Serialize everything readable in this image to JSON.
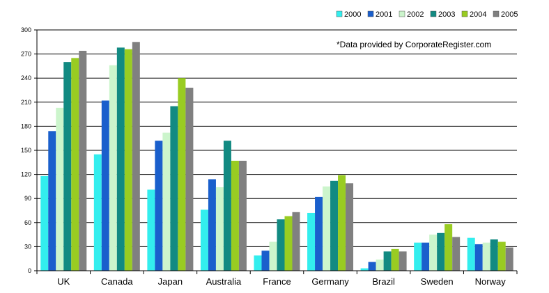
{
  "chart_data": {
    "type": "bar",
    "title": "",
    "xlabel": "",
    "ylabel": "",
    "annotation": "*Data provided by CorporateRegister.com",
    "categories": [
      "UK",
      "Canada",
      "Japan",
      "Australia",
      "France",
      "Germany",
      "Brazil",
      "Sweden",
      "Norway"
    ],
    "series": [
      {
        "name": "2000",
        "color": "#33eeee",
        "values": [
          118,
          145,
          101,
          76,
          19,
          72,
          3,
          35,
          41
        ]
      },
      {
        "name": "2001",
        "color": "#1a5fcc",
        "values": [
          174,
          212,
          162,
          114,
          25,
          92,
          11,
          35,
          33
        ]
      },
      {
        "name": "2002",
        "color": "#ccf5cc",
        "values": [
          203,
          256,
          172,
          104,
          36,
          105,
          14,
          45,
          35
        ]
      },
      {
        "name": "2003",
        "color": "#128a82",
        "values": [
          260,
          278,
          205,
          162,
          64,
          112,
          24,
          47,
          39
        ]
      },
      {
        "name": "2004",
        "color": "#99cc22",
        "values": [
          265,
          276,
          240,
          137,
          68,
          119,
          27,
          58,
          36
        ]
      },
      {
        "name": "2005",
        "color": "#808080",
        "values": [
          274,
          285,
          228,
          137,
          73,
          109,
          24,
          42,
          29
        ]
      }
    ],
    "ylim": [
      0,
      300
    ],
    "yticks": [
      0,
      30,
      60,
      90,
      120,
      150,
      180,
      210,
      240,
      270,
      300
    ],
    "ytick_labels": [
      "0",
      "30",
      "60",
      "90",
      "120",
      "150",
      "180",
      "210",
      "240",
      "270",
      "300"
    ],
    "grid": true,
    "legend_position": "top-right"
  }
}
